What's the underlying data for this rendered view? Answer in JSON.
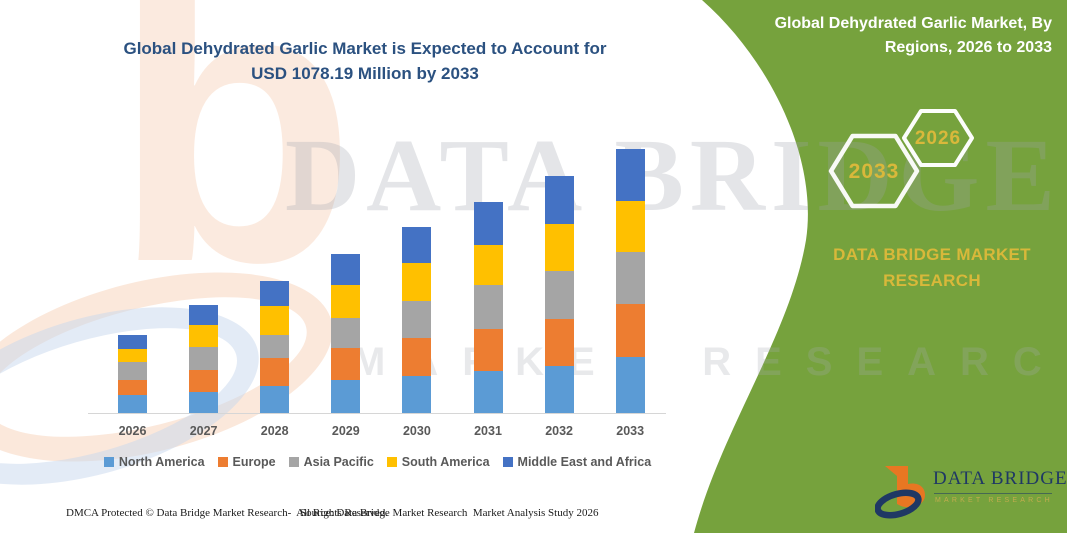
{
  "title": {
    "line1": "Global Dehydrated Garlic Market is Expected to Account for",
    "line2": "USD 1078.19 Million by 2033"
  },
  "panel": {
    "heading_line1": "Global Dehydrated Garlic Market, By",
    "heading_line2": "Regions, 2026 to 2033",
    "hexagon_back_year": "2033",
    "hexagon_front_year": "2026",
    "brand_text": "DATA BRIDGE MARKET RESEARCH",
    "green_color": "#76A23D",
    "accent_yellow": "#D8B83A"
  },
  "watermark": {
    "letter": "b",
    "text_line1": "DATA BRIDGE",
    "text_line2": "MARKET RESEARCH"
  },
  "footer": {
    "dmca": "DMCA Protected © Data Bridge Market Research-  All Rights Reserved.",
    "source": "Source: Data Bridge Market Research  Market Analysis Study 2026"
  },
  "logo": {
    "name": "DATA BRIDGE",
    "subtitle": "MARKET RESEARCH"
  },
  "chart_data": {
    "type": "bar",
    "stacked": true,
    "title": "Global Dehydrated Garlic Market is Expected to Account for USD 1078.19 Million by 2033",
    "unit": "USD Million",
    "categories": [
      "2026",
      "2027",
      "2028",
      "2029",
      "2030",
      "2031",
      "2032",
      "2033"
    ],
    "series": [
      {
        "name": "North America",
        "color": "#5B9BD5",
        "values": [
          73.5,
          85.8,
          110.3,
          134.8,
          151.1,
          171.5,
          191.9,
          228.7
        ]
      },
      {
        "name": "Europe",
        "color": "#ED7D31",
        "values": [
          61.3,
          89.8,
          114.4,
          130.7,
          155.2,
          171.5,
          191.9,
          216.5
        ]
      },
      {
        "name": "Asia Pacific",
        "color": "#A5A5A5",
        "values": [
          73.5,
          93.9,
          93.9,
          122.5,
          151.1,
          179.7,
          196.0,
          212.4
        ]
      },
      {
        "name": "South America",
        "color": "#FFC000",
        "values": [
          53.1,
          89.8,
          118.4,
          134.8,
          155.2,
          163.4,
          191.9,
          208.3
        ]
      },
      {
        "name": "Middle East and Africa",
        "color": "#4472C4",
        "values": [
          57.2,
          81.7,
          102.1,
          126.6,
          147.0,
          175.6,
          196.0,
          212.4
        ]
      }
    ],
    "totals": [
      318.6,
      441.1,
      539.1,
      649.4,
      759.6,
      861.7,
      967.9,
      1078.19
    ],
    "xlabel": "",
    "ylabel": "",
    "ylim": [
      0,
      1100
    ],
    "grid": false,
    "axis_visible": "x-only",
    "legend_position": "bottom"
  }
}
